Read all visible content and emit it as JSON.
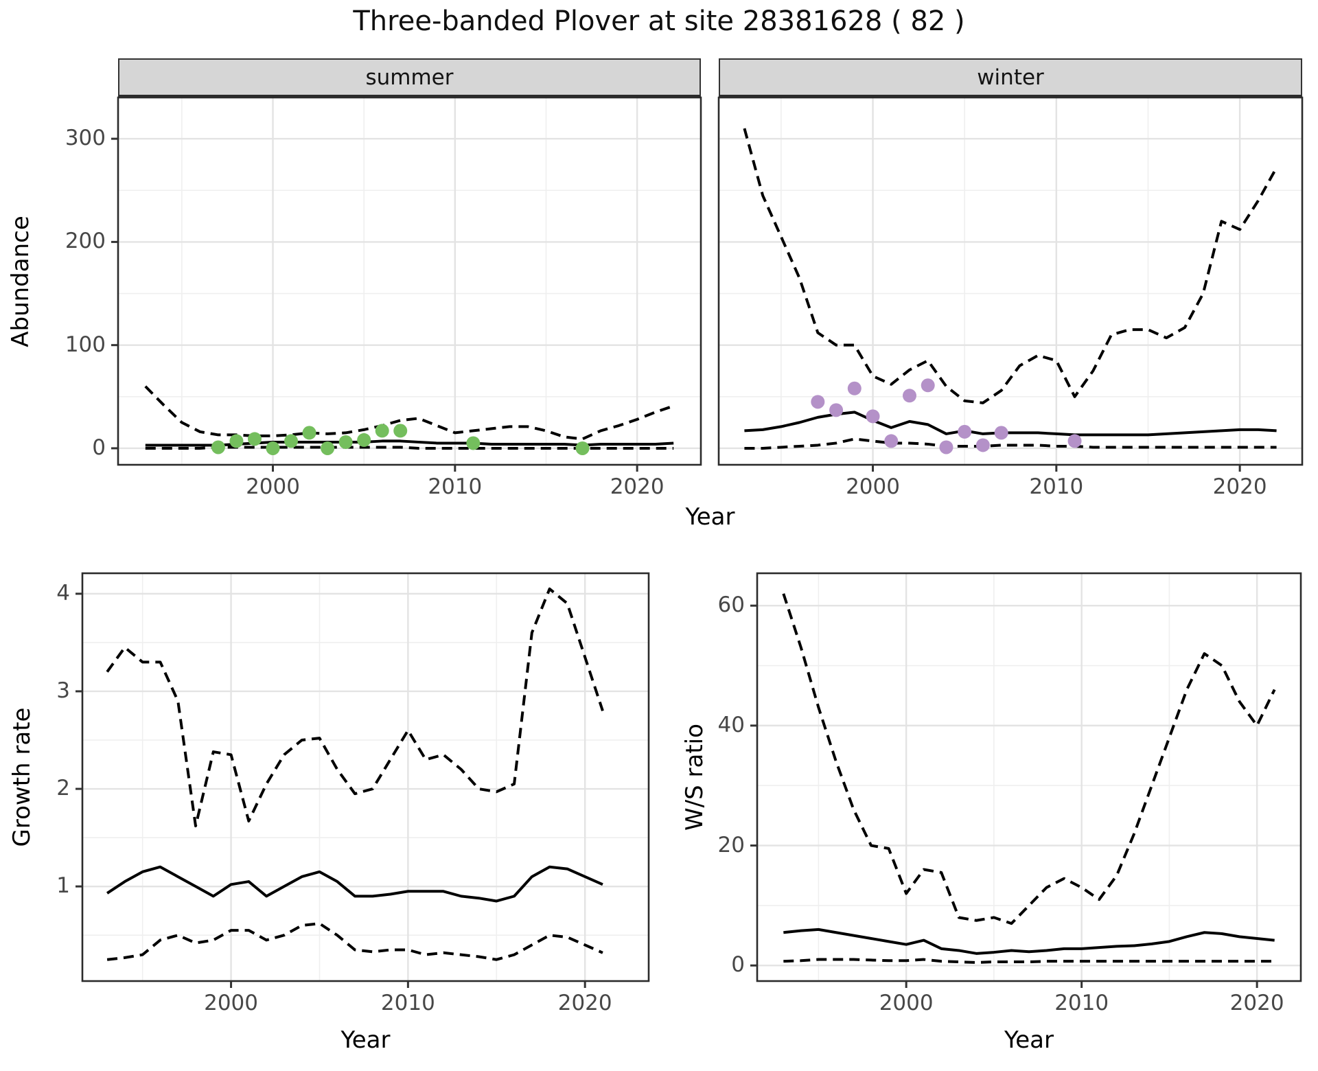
{
  "chart_data": {
    "type": "line",
    "title": "Three-banded Plover at site 28381628 ( 82 )",
    "x_label": "Year",
    "legend": "none",
    "grid": "on",
    "panels": [
      {
        "id": "abundance_summer",
        "facet": "summer",
        "xlabel": "Year",
        "ylabel": "Abundance",
        "xlim": [
          1991.5,
          2023.5
        ],
        "ylim": [
          -16,
          340
        ],
        "x_ticks": [
          2000,
          2010,
          2020
        ],
        "y_ticks": [
          0,
          100,
          200,
          300
        ],
        "show_y_axis": true,
        "years": [
          1993,
          1994,
          1995,
          1996,
          1997,
          1998,
          1999,
          2000,
          2001,
          2002,
          2003,
          2004,
          2005,
          2006,
          2007,
          2008,
          2009,
          2010,
          2011,
          2012,
          2013,
          2014,
          2015,
          2016,
          2017,
          2018,
          2019,
          2020,
          2021,
          2022
        ],
        "series": [
          {
            "name": "upper-95ci",
            "style": "dashed",
            "color": "#000000",
            "values": [
              60,
              42,
              25,
              16,
              13,
              13,
              12,
              12,
              13,
              15,
              14,
              15,
              18,
              22,
              27,
              29,
              22,
              15,
              17,
              19,
              21,
              21,
              17,
              11,
              9,
              17,
              22,
              28,
              35,
              41
            ]
          },
          {
            "name": "median",
            "style": "solid",
            "color": "#000000",
            "values": [
              3,
              3,
              3,
              3,
              3,
              4,
              5,
              6,
              6,
              6,
              6,
              6,
              6,
              7,
              7,
              6,
              5,
              5,
              5,
              4,
              4,
              4,
              4,
              4,
              3,
              4,
              4,
              4,
              4,
              5
            ]
          },
          {
            "name": "lower-5ci",
            "style": "dashed",
            "color": "#000000",
            "values": [
              0,
              0,
              0,
              0,
              1,
              1,
              1,
              1,
              1,
              1,
              1,
              1,
              1,
              1,
              1,
              0,
              0,
              0,
              0,
              0,
              0,
              0,
              0,
              0,
              0,
              0,
              0,
              0,
              0,
              0
            ]
          }
        ],
        "observations": {
          "name": "observed-counts-summer",
          "color": "#74be5d",
          "years": [
            1997,
            1998,
            1999,
            2000,
            2001,
            2002,
            2003,
            2004,
            2005,
            2006,
            2007,
            2011,
            2017
          ],
          "values": [
            1,
            7,
            9,
            0,
            7,
            15,
            0,
            6,
            8,
            17,
            17,
            5,
            0
          ]
        }
      },
      {
        "id": "abundance_winter",
        "facet": "winter",
        "xlabel": "Year",
        "ylabel": "Abundance",
        "xlim": [
          1991.6,
          2023.4
        ],
        "ylim": [
          -16,
          340
        ],
        "x_ticks": [
          2000,
          2010,
          2020
        ],
        "y_ticks": [
          0,
          100,
          200,
          300
        ],
        "show_y_axis": false,
        "years": [
          1993,
          1994,
          1995,
          1996,
          1997,
          1998,
          1999,
          2000,
          2001,
          2002,
          2003,
          2004,
          2005,
          2006,
          2007,
          2008,
          2009,
          2010,
          2011,
          2012,
          2013,
          2014,
          2015,
          2016,
          2017,
          2018,
          2019,
          2020,
          2021,
          2022
        ],
        "series": [
          {
            "name": "upper-95ci",
            "style": "dashed",
            "color": "#000000",
            "values": [
              310,
              245,
              205,
              165,
              112,
              100,
              100,
              70,
              62,
              76,
              85,
              60,
              46,
              44,
              56,
              80,
              90,
              85,
              50,
              75,
              110,
              115,
              115,
              107,
              117,
              150,
              220,
              212,
              240,
              272
            ]
          },
          {
            "name": "median",
            "style": "solid",
            "color": "#000000",
            "values": [
              17,
              18,
              21,
              25,
              30,
              33,
              35,
              27,
              20,
              26,
              23,
              14,
              17,
              14,
              15,
              15,
              15,
              14,
              13,
              13,
              13,
              13,
              13,
              14,
              15,
              16,
              17,
              18,
              18,
              17
            ]
          },
          {
            "name": "lower-5ci",
            "style": "dashed",
            "color": "#000000",
            "values": [
              0,
              0,
              1,
              2,
              3,
              5,
              9,
              7,
              5,
              5,
              4,
              2,
              2,
              2,
              3,
              3,
              3,
              2,
              2,
              1,
              1,
              1,
              1,
              1,
              1,
              1,
              1,
              1,
              1,
              1
            ]
          }
        ],
        "observations": {
          "name": "observed-counts-winter",
          "color": "#b491c8",
          "years": [
            1997,
            1998,
            1999,
            2000,
            2001,
            2002,
            2003,
            2004,
            2005,
            2006,
            2007,
            2011
          ],
          "values": [
            45,
            37,
            58,
            31,
            7,
            51,
            61,
            1,
            16,
            3,
            15,
            7
          ]
        }
      },
      {
        "id": "growth_rate",
        "facet": null,
        "xlabel": "Year",
        "ylabel": "Growth rate",
        "xlim": [
          1991.6,
          2023.6
        ],
        "ylim": [
          0.03,
          4.21
        ],
        "x_ticks": [
          2000,
          2010,
          2020
        ],
        "y_ticks": [
          1,
          2,
          3,
          4
        ],
        "show_y_axis": true,
        "years": [
          1993,
          1994,
          1995,
          1996,
          1997,
          1998,
          1999,
          2000,
          2001,
          2002,
          2003,
          2004,
          2005,
          2006,
          2007,
          2008,
          2009,
          2010,
          2011,
          2012,
          2013,
          2014,
          2015,
          2016,
          2017,
          2018,
          2019,
          2020,
          2021
        ],
        "series": [
          {
            "name": "upper-95ci",
            "style": "dashed",
            "color": "#000000",
            "values": [
              3.2,
              3.45,
              3.3,
              3.3,
              2.9,
              1.62,
              2.38,
              2.35,
              1.67,
              2.05,
              2.35,
              2.5,
              2.52,
              2.2,
              1.95,
              2.0,
              2.3,
              2.6,
              2.3,
              2.35,
              2.2,
              2.0,
              1.97,
              2.05,
              3.6,
              4.05,
              3.9,
              3.35,
              2.8
            ]
          },
          {
            "name": "median",
            "style": "solid",
            "color": "#000000",
            "values": [
              0.93,
              1.05,
              1.15,
              1.2,
              1.1,
              1.0,
              0.9,
              1.02,
              1.05,
              0.9,
              1.0,
              1.1,
              1.15,
              1.05,
              0.9,
              0.9,
              0.92,
              0.95,
              0.95,
              0.95,
              0.9,
              0.88,
              0.85,
              0.9,
              1.1,
              1.2,
              1.18,
              1.1,
              1.02
            ]
          },
          {
            "name": "lower-5ci",
            "style": "dashed",
            "color": "#000000",
            "values": [
              0.25,
              0.27,
              0.3,
              0.45,
              0.5,
              0.42,
              0.45,
              0.55,
              0.55,
              0.45,
              0.5,
              0.6,
              0.62,
              0.5,
              0.35,
              0.33,
              0.35,
              0.35,
              0.3,
              0.32,
              0.3,
              0.28,
              0.25,
              0.3,
              0.4,
              0.5,
              0.48,
              0.4,
              0.32
            ]
          }
        ],
        "observations": null
      },
      {
        "id": "ws_ratio",
        "facet": null,
        "xlabel": "Year",
        "ylabel": "W/S ratio",
        "xlim": [
          1991.5,
          2022.5
        ],
        "ylim": [
          -2.6,
          65.4
        ],
        "x_ticks": [
          2000,
          2010,
          2020
        ],
        "y_ticks": [
          0,
          20,
          40,
          60
        ],
        "show_y_axis": true,
        "years": [
          1993,
          1994,
          1995,
          1996,
          1997,
          1998,
          1999,
          2000,
          2001,
          2002,
          2003,
          2004,
          2005,
          2006,
          2007,
          2008,
          2009,
          2010,
          2011,
          2012,
          2013,
          2014,
          2015,
          2016,
          2017,
          2018,
          2019,
          2020,
          2021
        ],
        "series": [
          {
            "name": "upper-95ci",
            "style": "dashed",
            "color": "#000000",
            "values": [
              62,
              53,
              43,
              34,
              26,
              20,
              19.5,
              12,
              16,
              15.5,
              8,
              7.5,
              8,
              7,
              10,
              13,
              14.5,
              13,
              11,
              15,
              22,
              30,
              38,
              46,
              52,
              50,
              44,
              40,
              46
            ]
          },
          {
            "name": "median",
            "style": "solid",
            "color": "#000000",
            "values": [
              5.5,
              5.8,
              6,
              5.5,
              5,
              4.5,
              4,
              3.5,
              4.2,
              2.8,
              2.5,
              2,
              2.2,
              2.5,
              2.3,
              2.5,
              2.8,
              2.8,
              3,
              3.2,
              3.3,
              3.6,
              4,
              4.8,
              5.5,
              5.3,
              4.8,
              4.5,
              4.2
            ]
          },
          {
            "name": "lower-5ci",
            "style": "dashed",
            "color": "#000000",
            "values": [
              0.7,
              0.8,
              1,
              1,
              1,
              0.9,
              0.8,
              0.8,
              1,
              0.7,
              0.6,
              0.5,
              0.6,
              0.6,
              0.6,
              0.7,
              0.7,
              0.7,
              0.7,
              0.7,
              0.7,
              0.7,
              0.7,
              0.7,
              0.7,
              0.7,
              0.7,
              0.7,
              0.7
            ]
          }
        ],
        "observations": null
      }
    ],
    "style": {
      "strip_background": "#d6d6d6",
      "panel_border": "#2b2b2b",
      "major_grid": "#e3e3e3",
      "minor_grid": "#efefef",
      "line_color": "#000000",
      "summer_point_color": "#74be5d",
      "winter_point_color": "#b491c8"
    }
  }
}
